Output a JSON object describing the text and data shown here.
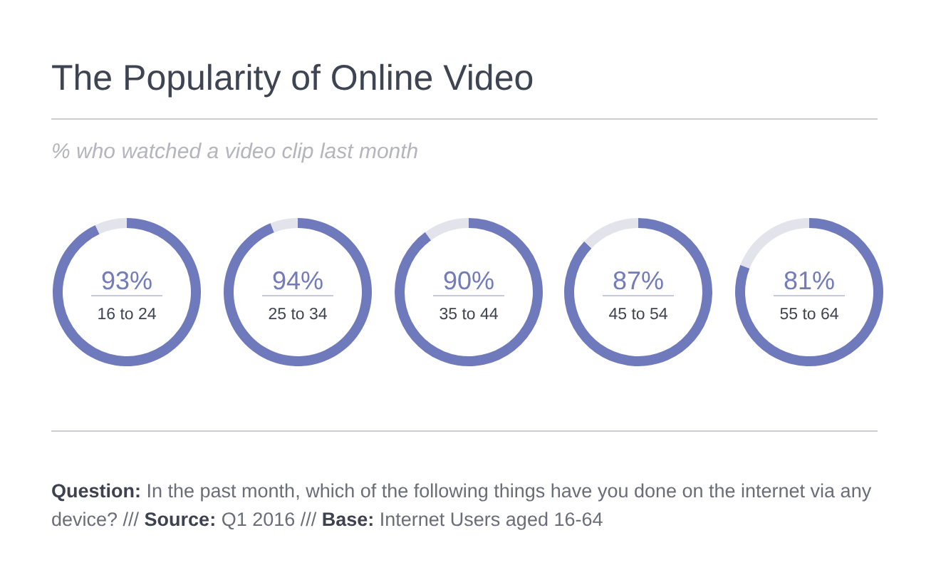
{
  "chart_data": [
    {
      "type": "donut",
      "title": "The Popularity of Online Video",
      "subtitle": "% who watched a video clip last month",
      "categories": [
        "16 to 24",
        null
      ],
      "values": [
        93,
        7
      ],
      "colors": [
        "#6f7abd",
        "#e3e4eb"
      ],
      "value_labels": [
        "93%",
        null
      ]
    },
    {
      "type": "donut",
      "categories": [
        "25 to 34",
        null
      ],
      "values": [
        94,
        6
      ],
      "colors": [
        "#6f7abd",
        "#e3e4eb"
      ],
      "value_labels": [
        "94%",
        null
      ]
    },
    {
      "type": "donut",
      "categories": [
        "35 to 44",
        null
      ],
      "values": [
        90,
        10
      ],
      "colors": [
        "#6f7abd",
        "#e3e4eb"
      ],
      "value_labels": [
        "90%",
        null
      ]
    },
    {
      "type": "donut",
      "categories": [
        "45 to 54",
        null
      ],
      "values": [
        87,
        13
      ],
      "colors": [
        "#6f7abd",
        "#e3e4eb"
      ],
      "value_labels": [
        "87%",
        null
      ]
    },
    {
      "type": "donut",
      "categories": [
        "55 to 64",
        null
      ],
      "values": [
        81,
        19
      ],
      "colors": [
        "#6f7abd",
        "#e3e4eb"
      ],
      "value_labels": [
        "81%",
        null
      ],
      "annotations": [
        "Question: In the past month, which of the following things have you done on the internet via any device? /// Source: Q1 2016 /// Base: Internet Users aged 16-64"
      ]
    }
  ]
}
